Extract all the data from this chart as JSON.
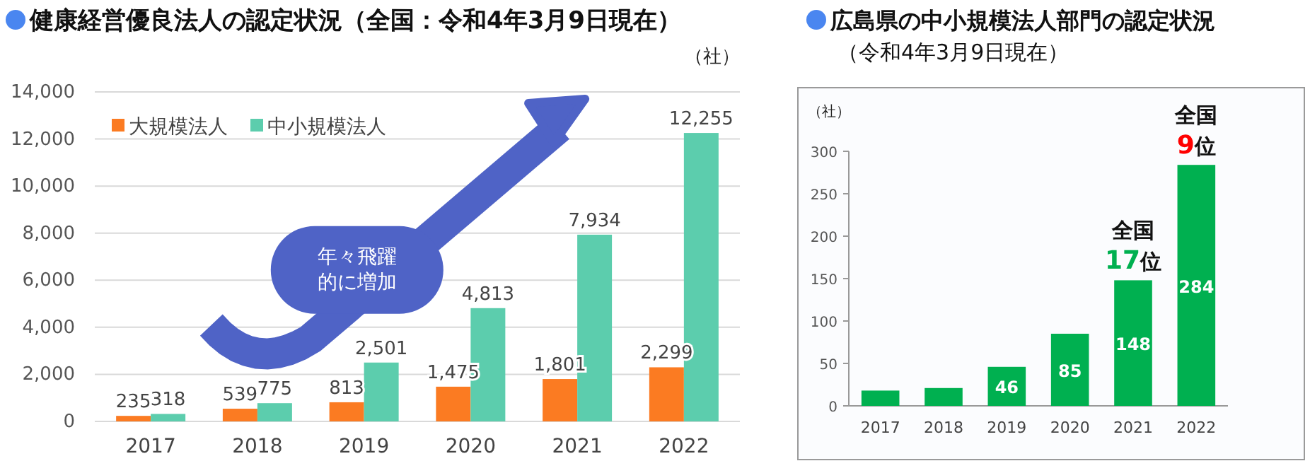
{
  "chart_data": [
    {
      "type": "bar",
      "title": "健康経営優良法人の認定状況（全国：令和4年3月9日現在）",
      "ylabel": "（社）",
      "categories": [
        "2017",
        "2018",
        "2019",
        "2020",
        "2021",
        "2022"
      ],
      "series": [
        {
          "name": "大規模法人",
          "color": "#fb7b22",
          "values": [
            235,
            539,
            813,
            1475,
            1801,
            2299
          ],
          "value_labels": [
            "235",
            "539",
            "813",
            "1,475",
            "1,801",
            "2,299"
          ]
        },
        {
          "name": "中小規模法人",
          "color": "#5ccdad",
          "values": [
            318,
            775,
            2501,
            4813,
            7934,
            12255
          ],
          "value_labels": [
            "318",
            "775",
            "2,501",
            "4,813",
            "7,934",
            "12,255"
          ]
        }
      ],
      "ylim": [
        0,
        14000
      ],
      "yticks": [
        0,
        {
          "value": 2000,
          "label": "2,000"
        },
        {
          "value": 4000,
          "label": "4,000"
        },
        {
          "value": 6000,
          "label": "6,000"
        },
        {
          "value": 8000,
          "label": "8,000"
        },
        {
          "value": 10000,
          "label": "10,000"
        },
        {
          "value": 12000,
          "label": "12,000"
        },
        {
          "value": 14000,
          "label": "14,000"
        }
      ],
      "grid": "y",
      "legend": "top left",
      "annotations": [
        "年々飛躍的に増加"
      ]
    },
    {
      "type": "bar",
      "title": "広島県の中小規模法人部門の認定状況",
      "subtitle": "（令和4年3月9日現在）",
      "ylabel": "（社）",
      "categories": [
        "2017",
        "2018",
        "2019",
        "2020",
        "2021",
        "2022"
      ],
      "values": [
        18,
        21,
        46,
        85,
        148,
        284
      ],
      "color": "#00b050",
      "value_labels": [
        null,
        null,
        "46",
        "85",
        "148",
        "284"
      ],
      "ylim": [
        0,
        300
      ],
      "yticks": [
        0,
        50,
        100,
        150,
        200,
        250,
        300
      ],
      "annotations": [
        {
          "text": "全国\n17位",
          "x": "2021",
          "y": 148
        },
        {
          "text": "全国\n9位",
          "x": "2022",
          "y": 284
        }
      ]
    }
  ]
}
